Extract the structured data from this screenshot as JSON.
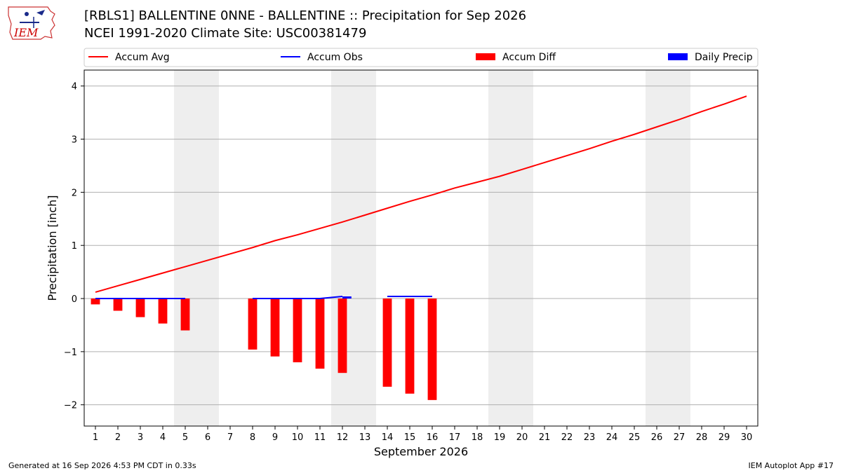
{
  "header": {
    "title_line1": "[RBLS1] BALLENTINE 0NNE - BALLENTINE :: Precipitation for Sep 2026",
    "title_line2": "NCEI 1991-2020 Climate Site: USC00381479",
    "logo_text": "IEM"
  },
  "footer": {
    "generated": "Generated at 16 Sep 2026 4:53 PM CDT in 0.33s",
    "app": "IEM Autoplot App #17"
  },
  "colors": {
    "accum_avg": "#ff0000",
    "accum_obs": "#0000ff",
    "accum_diff": "#ff0000",
    "daily_precip": "#0000ff",
    "weekend_band": "#eeeeee",
    "grid": "#b0b0b0"
  },
  "chart_data": {
    "type": "bar",
    "title": "[RBLS1] BALLENTINE 0NNE - BALLENTINE :: Precipitation for Sep 2026",
    "xlabel": "September 2026",
    "ylabel": "Precipitation [inch]",
    "xlim": [
      0.5,
      30.5
    ],
    "ylim": [
      -2.4,
      4.3
    ],
    "yticks": [
      -2,
      -1,
      0,
      1,
      2,
      3,
      4
    ],
    "ytick_labels": [
      "−2",
      "−1",
      "0",
      "1",
      "2",
      "3",
      "4"
    ],
    "xticks": [
      1,
      2,
      3,
      4,
      5,
      6,
      7,
      8,
      9,
      10,
      11,
      12,
      13,
      14,
      15,
      16,
      17,
      18,
      19,
      20,
      21,
      22,
      23,
      24,
      25,
      26,
      27,
      28,
      29,
      30
    ],
    "grid": "horizontal",
    "legend_position": "top",
    "weekend_days": [
      5,
      6,
      12,
      13,
      19,
      20,
      26,
      27
    ],
    "series": [
      {
        "name": "Accum Avg",
        "type": "line",
        "x": [
          1,
          2,
          3,
          4,
          5,
          6,
          7,
          8,
          9,
          10,
          11,
          12,
          13,
          14,
          15,
          16,
          17,
          18,
          19,
          20,
          21,
          22,
          23,
          24,
          25,
          26,
          27,
          28,
          29,
          30
        ],
        "values": [
          0.12,
          0.24,
          0.36,
          0.48,
          0.6,
          0.72,
          0.84,
          0.96,
          1.09,
          1.2,
          1.32,
          1.44,
          1.57,
          1.7,
          1.83,
          1.95,
          2.08,
          2.19,
          2.3,
          2.43,
          2.56,
          2.69,
          2.82,
          2.96,
          3.09,
          3.23,
          3.37,
          3.52,
          3.66,
          3.81
        ]
      },
      {
        "name": "Accum Obs",
        "type": "line",
        "segments": [
          {
            "x": [
              1,
              2,
              3,
              4,
              5
            ],
            "values": [
              0,
              0,
              0,
              0,
              0
            ]
          },
          {
            "x": [
              8,
              9,
              10,
              11,
              12
            ],
            "values": [
              0,
              0,
              0,
              0,
              0.04
            ]
          },
          {
            "x": [
              14,
              15,
              16
            ],
            "values": [
              0.04,
              0.04,
              0.04
            ]
          }
        ]
      },
      {
        "name": "Accum Diff",
        "type": "bar",
        "x": [
          1,
          2,
          3,
          4,
          5,
          8,
          9,
          10,
          11,
          12,
          14,
          15,
          16
        ],
        "values": [
          -0.11,
          -0.23,
          -0.35,
          -0.47,
          -0.6,
          -0.96,
          -1.09,
          -1.2,
          -1.32,
          -1.4,
          -1.66,
          -1.79,
          -1.91
        ]
      },
      {
        "name": "Daily Precip",
        "type": "bar",
        "x": [
          12
        ],
        "values": [
          0.04
        ]
      }
    ]
  }
}
